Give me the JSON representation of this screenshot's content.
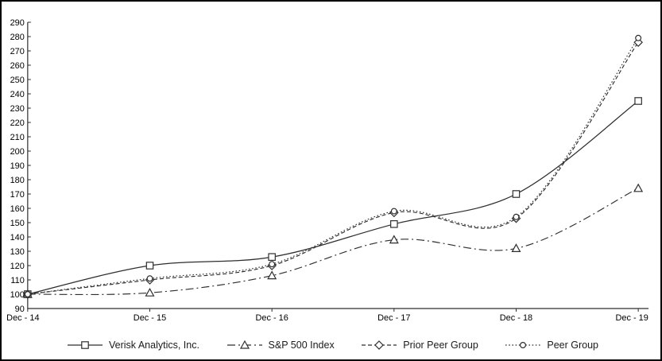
{
  "figure": {
    "background": "#ffffff",
    "border_color": "#000000",
    "line_color": "#2e2e2e",
    "marker_fill": "#ffffff",
    "text_color": "#000000"
  },
  "chart_data": {
    "type": "line",
    "title": "",
    "xlabel": "",
    "ylabel": "",
    "categories": [
      "Dec - 14",
      "Dec - 15",
      "Dec - 16",
      "Dec - 17",
      "Dec - 18",
      "Dec - 19"
    ],
    "series": [
      {
        "name": "Verisk Analytics, Inc.",
        "line": "solid",
        "marker": "square",
        "values": [
          100,
          120,
          126,
          149,
          170,
          235
        ]
      },
      {
        "name": "S&P 500 Index",
        "line": "dashdot",
        "marker": "triangle",
        "values": [
          100,
          101,
          113,
          138,
          132,
          174
        ]
      },
      {
        "name": "Prior Peer Group",
        "line": "dashed",
        "marker": "diamond",
        "values": [
          100,
          110,
          120,
          157,
          153,
          276
        ]
      },
      {
        "name": "Peer Group",
        "line": "dotted",
        "marker": "circle",
        "values": [
          100,
          111,
          121,
          158,
          154,
          279
        ]
      }
    ],
    "ylim": [
      90,
      290
    ],
    "ytick_step": 10,
    "grid": false,
    "smooth": true,
    "legend_position": "bottom"
  }
}
